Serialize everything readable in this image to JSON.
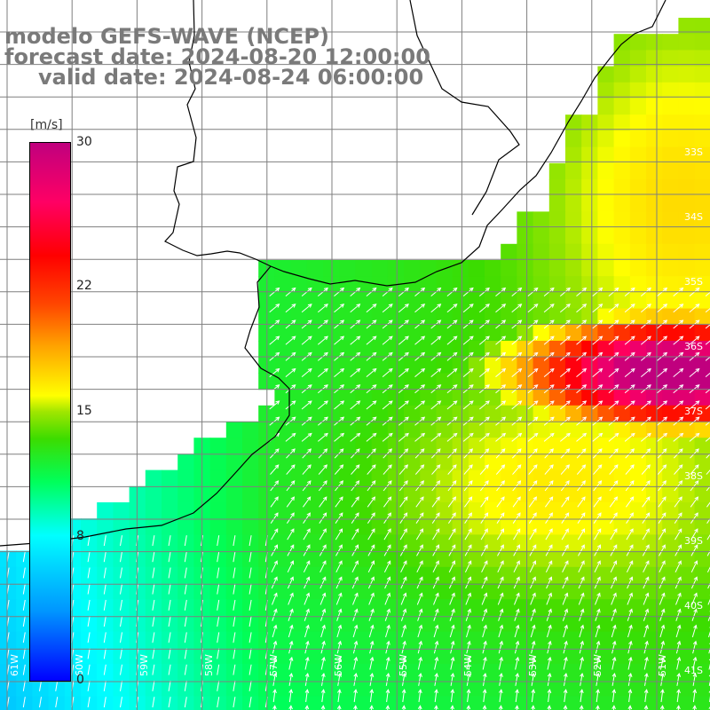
{
  "title": {
    "line1": "modelo GEFS-WAVE (NCEP)",
    "line2": "forecast date: 2024-08-20 12:00:00",
    "line3": "valid date: 2024-08-24 06:00:00"
  },
  "colorbar": {
    "unit": "[m/s]",
    "ticks": [
      "30",
      "22",
      "15",
      "8",
      "0"
    ],
    "tick_values": [
      30,
      22,
      15,
      8,
      0
    ],
    "range": [
      0,
      30
    ],
    "colors": [
      "#0000ff",
      "#0096ff",
      "#00ffff",
      "#00ff5a",
      "#3cdc00",
      "#a0e600",
      "#ffff00",
      "#ffa500",
      "#ff4600",
      "#ff0000",
      "#ff0064",
      "#c0007e"
    ]
  },
  "map": {
    "lat_labels": [
      "33S",
      "34S",
      "35S",
      "36S",
      "37S",
      "38S",
      "39S",
      "40S",
      "41S"
    ],
    "lon_labels": [
      "61W",
      "60W",
      "59W",
      "58W",
      "57W",
      "56W",
      "55W",
      "54W",
      "53W",
      "52W",
      "51W"
    ],
    "lat_range": [
      -41.5,
      -30.5
    ],
    "lon_range": [
      -61.5,
      -50.5
    ],
    "variable": "wind speed",
    "colors": {
      "land": "#ffffff",
      "coast": "#000000",
      "grid": "#7f7f7f",
      "arrows": "#ffffff"
    }
  }
}
